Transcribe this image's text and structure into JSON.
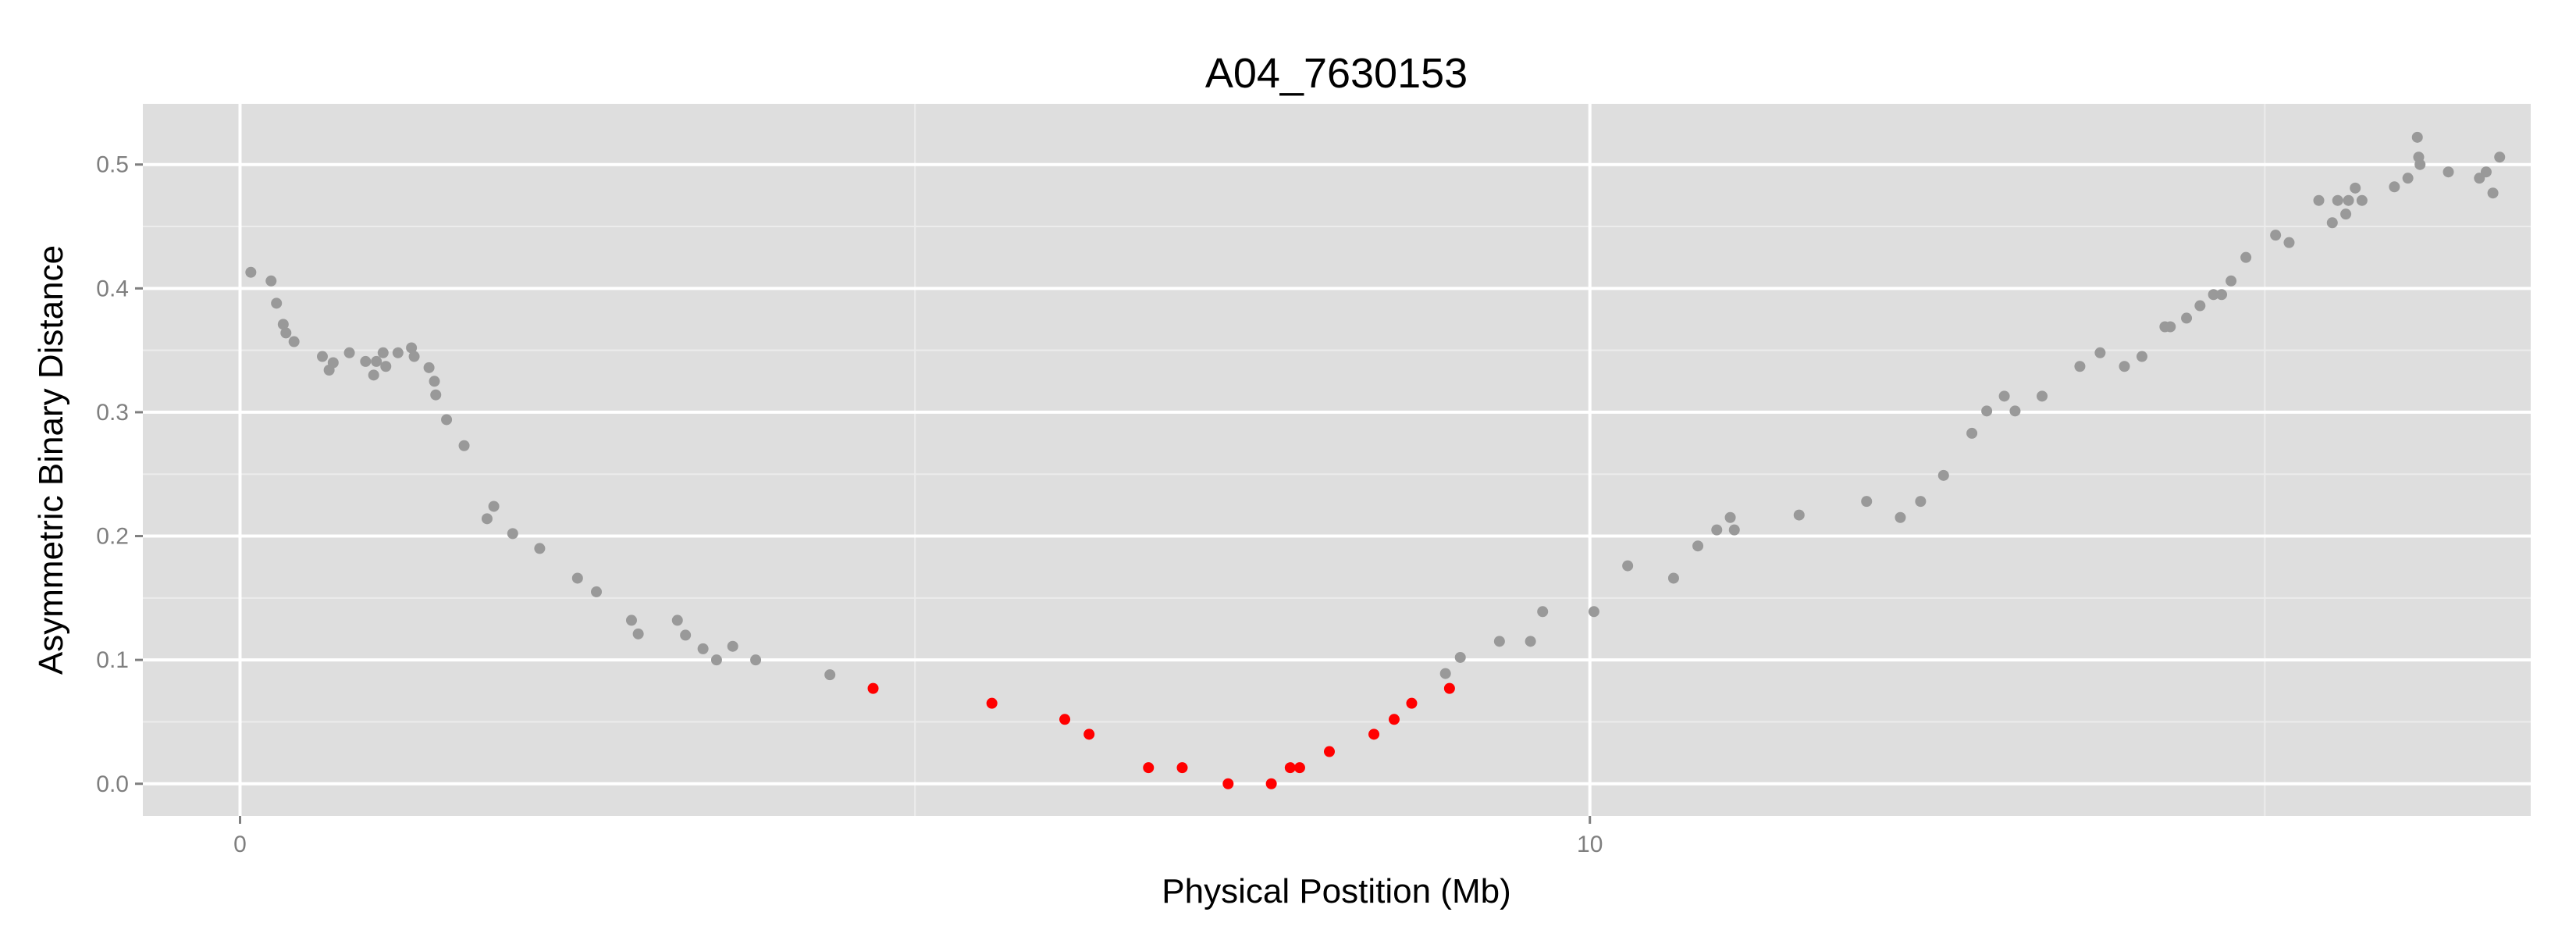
{
  "chart_data": {
    "type": "scatter",
    "title": "A04_7630153",
    "xlabel": "Physical Postition (Mb)",
    "ylabel": "Asymmetric Binary Distance",
    "xlim": [
      -0.72,
      16.97
    ],
    "ylim": [
      -0.026,
      0.549
    ],
    "x_ticks": [
      0,
      10
    ],
    "x_minor_ticks": [
      5,
      15
    ],
    "y_ticks": [
      0.0,
      0.1,
      0.2,
      0.3,
      0.4,
      0.5
    ],
    "y_tick_labels": [
      "0.0",
      "0.1",
      "0.2",
      "0.3",
      "0.4",
      "0.5"
    ],
    "grid": true,
    "legend": "none",
    "colors": {
      "panel": "#dedede",
      "grid_major": "#ffffff",
      "grid_minor": "#ececec",
      "point_default": "#999999",
      "point_highlight": "#ff0000"
    },
    "series": [
      {
        "color": "#999999",
        "points": [
          [
            0.08,
            0.413
          ],
          [
            0.23,
            0.406
          ],
          [
            0.27,
            0.388
          ],
          [
            0.32,
            0.371
          ],
          [
            0.34,
            0.364
          ],
          [
            0.4,
            0.357
          ],
          [
            0.61,
            0.345
          ],
          [
            0.66,
            0.334
          ],
          [
            0.69,
            0.34
          ],
          [
            0.81,
            0.348
          ],
          [
            0.93,
            0.341
          ],
          [
            0.99,
            0.33
          ],
          [
            1.01,
            0.341
          ],
          [
            1.06,
            0.348
          ],
          [
            1.08,
            0.337
          ],
          [
            1.17,
            0.348
          ],
          [
            1.27,
            0.352
          ],
          [
            1.29,
            0.345
          ],
          [
            1.4,
            0.336
          ],
          [
            1.44,
            0.325
          ],
          [
            1.45,
            0.314
          ],
          [
            1.53,
            0.294
          ],
          [
            1.66,
            0.273
          ],
          [
            1.83,
            0.214
          ],
          [
            1.88,
            0.224
          ],
          [
            2.02,
            0.202
          ],
          [
            2.22,
            0.19
          ],
          [
            2.5,
            0.166
          ],
          [
            2.64,
            0.155
          ],
          [
            2.9,
            0.132
          ],
          [
            2.95,
            0.121
          ],
          [
            3.24,
            0.132
          ],
          [
            3.3,
            0.12
          ],
          [
            3.43,
            0.109
          ],
          [
            3.53,
            0.1
          ],
          [
            3.65,
            0.111
          ],
          [
            3.82,
            0.1
          ],
          [
            4.37,
            0.088
          ],
          [
            8.93,
            0.089
          ],
          [
            9.04,
            0.102
          ],
          [
            9.33,
            0.115
          ],
          [
            9.56,
            0.115
          ],
          [
            9.65,
            0.139
          ],
          [
            10.03,
            0.139
          ],
          [
            10.28,
            0.176
          ],
          [
            10.62,
            0.166
          ],
          [
            10.8,
            0.192
          ],
          [
            10.94,
            0.205
          ],
          [
            11.04,
            0.215
          ],
          [
            11.07,
            0.205
          ],
          [
            11.55,
            0.217
          ],
          [
            12.05,
            0.228
          ],
          [
            12.3,
            0.215
          ],
          [
            12.45,
            0.228
          ],
          [
            12.62,
            0.249
          ],
          [
            12.83,
            0.283
          ],
          [
            12.94,
            0.301
          ],
          [
            13.07,
            0.313
          ],
          [
            13.15,
            0.301
          ],
          [
            13.35,
            0.313
          ],
          [
            13.63,
            0.337
          ],
          [
            13.78,
            0.348
          ],
          [
            13.96,
            0.337
          ],
          [
            14.09,
            0.345
          ],
          [
            14.26,
            0.369
          ],
          [
            14.3,
            0.369
          ],
          [
            14.42,
            0.376
          ],
          [
            14.52,
            0.386
          ],
          [
            14.62,
            0.395
          ],
          [
            14.68,
            0.395
          ],
          [
            14.75,
            0.406
          ],
          [
            14.86,
            0.425
          ],
          [
            15.08,
            0.443
          ],
          [
            15.18,
            0.437
          ],
          [
            15.4,
            0.471
          ],
          [
            15.5,
            0.453
          ],
          [
            15.54,
            0.471
          ],
          [
            15.6,
            0.46
          ],
          [
            15.62,
            0.471
          ],
          [
            15.67,
            0.481
          ],
          [
            15.72,
            0.471
          ],
          [
            15.96,
            0.482
          ],
          [
            16.06,
            0.489
          ],
          [
            16.13,
            0.522
          ],
          [
            16.14,
            0.506
          ],
          [
            16.15,
            0.5
          ],
          [
            16.36,
            0.494
          ],
          [
            16.59,
            0.489
          ],
          [
            16.64,
            0.494
          ],
          [
            16.69,
            0.477
          ],
          [
            16.74,
            0.506
          ]
        ]
      },
      {
        "color": "#ff0000",
        "points": [
          [
            4.69,
            0.077
          ],
          [
            5.57,
            0.065
          ],
          [
            6.11,
            0.052
          ],
          [
            6.29,
            0.04
          ],
          [
            6.73,
            0.013
          ],
          [
            6.98,
            0.013
          ],
          [
            7.32,
            0.0
          ],
          [
            7.64,
            0.0
          ],
          [
            7.78,
            0.013
          ],
          [
            7.85,
            0.013
          ],
          [
            8.07,
            0.026
          ],
          [
            8.4,
            0.04
          ],
          [
            8.55,
            0.052
          ],
          [
            8.68,
            0.065
          ],
          [
            8.96,
            0.077
          ]
        ]
      }
    ]
  }
}
